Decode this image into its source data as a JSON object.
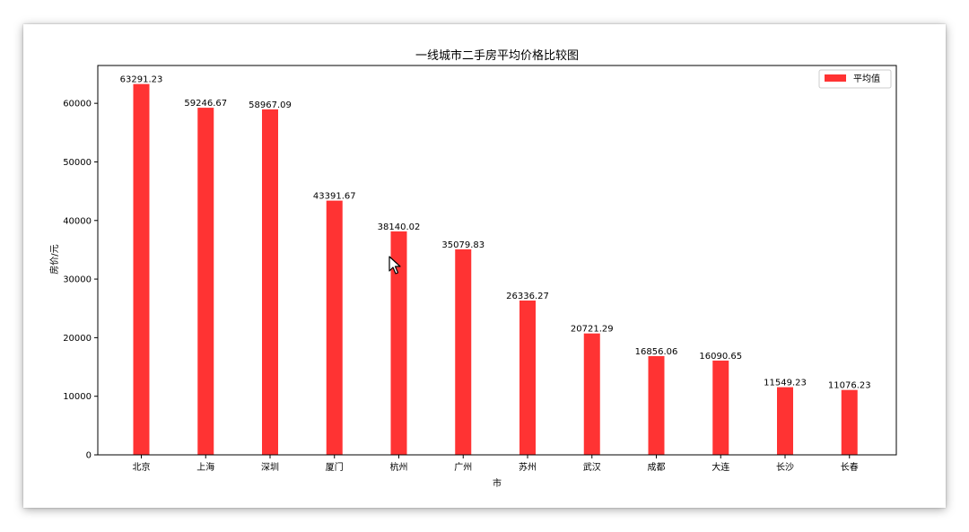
{
  "chart_data": {
    "type": "bar",
    "title": "一线城市二手房平均价格比较图",
    "xlabel": "市",
    "ylabel": "房价/元",
    "categories": [
      "北京",
      "上海",
      "深圳",
      "厦门",
      "杭州",
      "广州",
      "苏州",
      "武汉",
      "成都",
      "大连",
      "长沙",
      "长春"
    ],
    "series": [
      {
        "name": "平均值",
        "values": [
          63291.23,
          59246.67,
          58967.09,
          43391.67,
          38140.02,
          35079.83,
          26336.27,
          20721.29,
          16856.06,
          16090.65,
          11549.23,
          11076.23
        ]
      }
    ],
    "data_labels": [
      "63291.23",
      "59246.67",
      "58967.09",
      "43391.67",
      "38140.02",
      "35079.83",
      "26336.27",
      "20721.29",
      "16856.06",
      "16090.65",
      "11549.23",
      "11076.23"
    ],
    "yticks": [
      0,
      10000,
      20000,
      30000,
      40000,
      50000,
      60000
    ],
    "ylim": [
      0,
      66455.79
    ],
    "grid": false,
    "legend": "top-right",
    "bar_color": "#ff3333"
  }
}
